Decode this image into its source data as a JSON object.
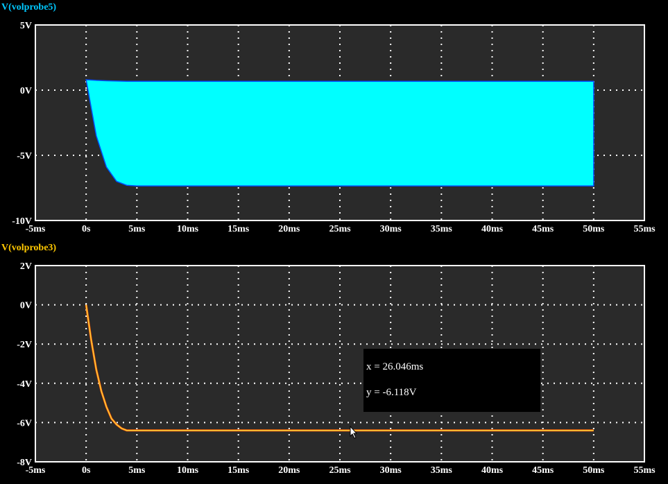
{
  "chart_data": [
    {
      "type": "area",
      "title": "V(volprobe5)",
      "title_color": "#00c8ff",
      "series_color": "#00ffff",
      "xlim": [
        -5,
        55
      ],
      "ylim": [
        -10,
        5
      ],
      "xticks": [
        "-5ms",
        "0s",
        "5ms",
        "10ms",
        "15ms",
        "20ms",
        "25ms",
        "30ms",
        "35ms",
        "40ms",
        "45ms",
        "50ms",
        "55ms"
      ],
      "yticks": [
        "5V",
        "0V",
        "-5V",
        "-10V"
      ],
      "ytick_values": [
        5,
        0,
        -5,
        -10
      ],
      "envelope": {
        "x_ms": [
          0,
          1,
          2,
          3,
          4,
          5,
          50
        ],
        "upper_V": [
          0.8,
          0.75,
          0.72,
          0.7,
          0.68,
          0.68,
          0.68
        ],
        "lower_V": [
          0.8,
          -3.5,
          -5.9,
          -7.0,
          -7.3,
          -7.35,
          -7.35
        ]
      },
      "grid": true
    },
    {
      "type": "line",
      "title": "V(volprobe3)",
      "title_color": "#ffc800",
      "series_color": "#ffd040",
      "xlim": [
        -5,
        55
      ],
      "ylim": [
        -8,
        2
      ],
      "xticks": [
        "-5ms",
        "0s",
        "5ms",
        "10ms",
        "15ms",
        "20ms",
        "25ms",
        "30ms",
        "35ms",
        "40ms",
        "45ms",
        "50ms",
        "55ms"
      ],
      "yticks": [
        "2V",
        "0V",
        "-2V",
        "-4V",
        "-6V",
        "-8V"
      ],
      "ytick_values": [
        2,
        0,
        -2,
        -4,
        -6,
        -8
      ],
      "x_ms": [
        0,
        0.5,
        1,
        1.5,
        2,
        2.5,
        3,
        3.5,
        4,
        5,
        50
      ],
      "y_V": [
        0,
        -1.8,
        -3.3,
        -4.4,
        -5.2,
        -5.8,
        -6.1,
        -6.3,
        -6.4,
        -6.4,
        -6.4
      ],
      "grid": true
    }
  ],
  "cursor_readout": {
    "x": "x = 26.046ms",
    "y": "y = -6.118V"
  }
}
